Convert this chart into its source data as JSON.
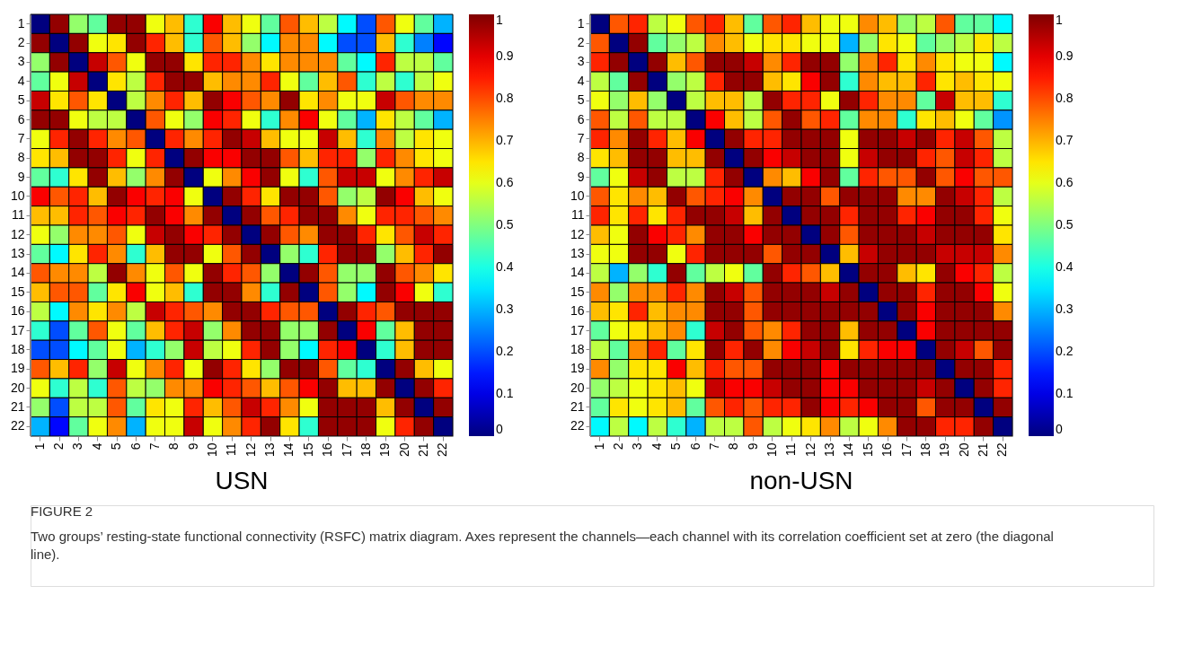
{
  "chart_data": [
    {
      "type": "heatmap",
      "title": "USN",
      "categories": [
        "1",
        "2",
        "3",
        "4",
        "5",
        "6",
        "7",
        "8",
        "9",
        "10",
        "11",
        "12",
        "13",
        "14",
        "15",
        "16",
        "17",
        "18",
        "19",
        "20",
        "21",
        "22"
      ],
      "y_categories": [
        "1",
        "2",
        "3",
        "4",
        "5",
        "6",
        "7",
        "8",
        "9",
        "10",
        "11",
        "12",
        "13",
        "14",
        "15",
        "16",
        "17",
        "18",
        "19",
        "20",
        "21",
        "22"
      ],
      "clim": [
        0,
        1
      ],
      "cticks": [
        0,
        0.1,
        0.2,
        0.3,
        0.4,
        0.5,
        0.6,
        0.7,
        0.8,
        0.9,
        1
      ],
      "cells": [
        [
          0,
          0.98,
          0.52,
          0.47,
          0.98,
          0.98,
          0.61,
          0.69,
          0.42,
          0.88,
          0.69,
          0.61,
          0.47,
          0.79,
          0.69,
          0.56,
          0.37,
          0.2,
          0.79,
          0.61,
          0.47,
          0.3
        ],
        [
          0.98,
          0,
          0.98,
          0.61,
          0.65,
          0.98,
          0.84,
          0.69,
          0.42,
          0.79,
          0.69,
          0.52,
          0.37,
          0.74,
          0.74,
          0.37,
          0.2,
          0.2,
          0.69,
          0.42,
          0.25,
          0.13
        ],
        [
          0.52,
          0.98,
          0,
          0.93,
          0.79,
          0.61,
          0.98,
          0.98,
          0.65,
          0.84,
          0.84,
          0.74,
          0.65,
          0.74,
          0.74,
          0.74,
          0.47,
          0.37,
          0.84,
          0.56,
          0.56,
          0.47
        ],
        [
          0.47,
          0.61,
          0.93,
          0,
          0.65,
          0.56,
          0.84,
          0.98,
          0.98,
          0.69,
          0.74,
          0.74,
          0.84,
          0.61,
          0.47,
          0.69,
          0.79,
          0.42,
          0.56,
          0.42,
          0.56,
          0.61
        ],
        [
          0.93,
          0.65,
          0.79,
          0.65,
          0,
          0.56,
          0.74,
          0.84,
          0.69,
          0.98,
          0.88,
          0.79,
          0.74,
          0.98,
          0.65,
          0.74,
          0.61,
          0.61,
          0.93,
          0.79,
          0.74,
          0.74
        ],
        [
          0.98,
          0.98,
          0.61,
          0.56,
          0.56,
          0,
          0.79,
          0.61,
          0.52,
          0.88,
          0.84,
          0.61,
          0.42,
          0.74,
          0.88,
          0.61,
          0.47,
          0.3,
          0.65,
          0.56,
          0.47,
          0.3
        ],
        [
          0.61,
          0.84,
          0.98,
          0.84,
          0.74,
          0.79,
          0,
          0.84,
          0.74,
          0.84,
          0.98,
          0.93,
          0.69,
          0.61,
          0.61,
          0.93,
          0.69,
          0.42,
          0.74,
          0.56,
          0.65,
          0.61
        ],
        [
          0.65,
          0.69,
          0.98,
          0.98,
          0.84,
          0.61,
          0.84,
          0,
          0.98,
          0.88,
          0.88,
          0.98,
          0.98,
          0.79,
          0.69,
          0.84,
          0.84,
          0.52,
          0.84,
          0.74,
          0.65,
          0.61
        ],
        [
          0.47,
          0.42,
          0.65,
          0.98,
          0.69,
          0.52,
          0.74,
          0.98,
          0,
          0.61,
          0.74,
          0.88,
          0.98,
          0.61,
          0.42,
          0.79,
          0.93,
          0.93,
          0.61,
          0.74,
          0.84,
          0.93
        ],
        [
          0.88,
          0.79,
          0.84,
          0.69,
          0.98,
          0.88,
          0.84,
          0.88,
          0.61,
          0,
          0.98,
          0.84,
          0.65,
          0.98,
          0.98,
          0.79,
          0.52,
          0.56,
          0.98,
          0.88,
          0.69,
          0.61
        ],
        [
          0.69,
          0.69,
          0.84,
          0.79,
          0.88,
          0.84,
          0.98,
          0.88,
          0.74,
          0.98,
          0,
          0.98,
          0.79,
          0.84,
          0.98,
          0.98,
          0.74,
          0.61,
          0.84,
          0.84,
          0.79,
          0.74
        ],
        [
          0.61,
          0.52,
          0.74,
          0.74,
          0.79,
          0.61,
          0.93,
          0.98,
          0.88,
          0.84,
          0.98,
          0,
          0.98,
          0.79,
          0.74,
          0.98,
          0.98,
          0.84,
          0.65,
          0.79,
          0.93,
          0.84
        ],
        [
          0.47,
          0.37,
          0.65,
          0.84,
          0.74,
          0.42,
          0.69,
          0.98,
          0.98,
          0.61,
          0.79,
          0.98,
          0,
          0.52,
          0.42,
          0.84,
          0.98,
          0.98,
          0.52,
          0.69,
          0.84,
          0.98
        ],
        [
          0.79,
          0.74,
          0.74,
          0.56,
          0.98,
          0.74,
          0.61,
          0.79,
          0.61,
          0.98,
          0.84,
          0.79,
          0.52,
          0,
          0.98,
          0.79,
          0.52,
          0.52,
          0.98,
          0.79,
          0.74,
          0.65
        ],
        [
          0.69,
          0.79,
          0.79,
          0.47,
          0.65,
          0.88,
          0.61,
          0.69,
          0.42,
          0.98,
          0.98,
          0.74,
          0.42,
          0.98,
          0,
          0.79,
          0.52,
          0.37,
          0.98,
          0.88,
          0.61,
          0.42
        ],
        [
          0.56,
          0.37,
          0.74,
          0.65,
          0.74,
          0.56,
          0.93,
          0.84,
          0.79,
          0.74,
          0.98,
          0.98,
          0.84,
          0.79,
          0.79,
          0,
          0.98,
          0.84,
          0.79,
          0.98,
          0.98,
          0.98
        ],
        [
          0.42,
          0.2,
          0.47,
          0.79,
          0.61,
          0.47,
          0.69,
          0.84,
          0.93,
          0.52,
          0.74,
          0.98,
          0.98,
          0.52,
          0.52,
          0.98,
          0,
          0.88,
          0.47,
          0.69,
          0.98,
          0.98
        ],
        [
          0.2,
          0.2,
          0.37,
          0.47,
          0.61,
          0.3,
          0.42,
          0.52,
          0.93,
          0.56,
          0.61,
          0.84,
          0.98,
          0.52,
          0.37,
          0.84,
          0.88,
          0,
          0.42,
          0.69,
          0.98,
          0.98
        ],
        [
          0.79,
          0.69,
          0.84,
          0.52,
          0.93,
          0.61,
          0.74,
          0.84,
          0.61,
          0.98,
          0.84,
          0.65,
          0.52,
          0.98,
          0.98,
          0.79,
          0.47,
          0.42,
          0,
          0.98,
          0.69,
          0.61
        ],
        [
          0.61,
          0.42,
          0.56,
          0.42,
          0.79,
          0.56,
          0.52,
          0.74,
          0.74,
          0.88,
          0.84,
          0.79,
          0.69,
          0.79,
          0.88,
          0.98,
          0.69,
          0.69,
          0.98,
          0,
          0.98,
          0.84
        ],
        [
          0.52,
          0.2,
          0.56,
          0.56,
          0.79,
          0.47,
          0.65,
          0.61,
          0.84,
          0.69,
          0.79,
          0.93,
          0.84,
          0.74,
          0.61,
          0.98,
          0.98,
          0.98,
          0.69,
          0.98,
          0,
          0.98
        ],
        [
          0.3,
          0.13,
          0.47,
          0.61,
          0.74,
          0.3,
          0.61,
          0.61,
          0.93,
          0.61,
          0.74,
          0.84,
          0.98,
          0.65,
          0.42,
          0.98,
          0.98,
          0.98,
          0.61,
          0.84,
          0.98,
          0
        ]
      ],
      "annotations": [
        "FIGURE 2",
        "Two groups’ resting-state functional connectivity (RSFC) matrix diagram. Axes represent the channels—each channel with its correlation coefficient set at zero (the diagonal line)."
      ]
    },
    {
      "type": "heatmap",
      "title": "non-USN",
      "categories": [
        "1",
        "2",
        "3",
        "4",
        "5",
        "6",
        "7",
        "8",
        "9",
        "10",
        "11",
        "12",
        "13",
        "14",
        "15",
        "16",
        "17",
        "18",
        "19",
        "20",
        "21",
        "22"
      ],
      "y_categories": [
        "1",
        "2",
        "3",
        "4",
        "5",
        "6",
        "7",
        "8",
        "9",
        "10",
        "11",
        "12",
        "13",
        "14",
        "15",
        "16",
        "17",
        "18",
        "19",
        "20",
        "21",
        "22"
      ],
      "clim": [
        0,
        1
      ],
      "cticks": [
        0,
        0.1,
        0.2,
        0.3,
        0.4,
        0.5,
        0.6,
        0.7,
        0.8,
        0.9,
        1
      ],
      "cells": [
        [
          0,
          0.79,
          0.84,
          0.56,
          0.61,
          0.79,
          0.84,
          0.69,
          0.47,
          0.79,
          0.84,
          0.69,
          0.61,
          0.61,
          0.74,
          0.69,
          0.52,
          0.56,
          0.79,
          0.47,
          0.47,
          0.37
        ],
        [
          0.79,
          0,
          0.98,
          0.47,
          0.52,
          0.56,
          0.74,
          0.69,
          0.61,
          0.65,
          0.65,
          0.61,
          0.61,
          0.3,
          0.52,
          0.65,
          0.61,
          0.47,
          0.52,
          0.56,
          0.65,
          0.56
        ],
        [
          0.84,
          0.98,
          0,
          0.98,
          0.69,
          0.79,
          0.98,
          0.98,
          0.93,
          0.74,
          0.84,
          0.98,
          0.98,
          0.52,
          0.74,
          0.84,
          0.65,
          0.74,
          0.65,
          0.61,
          0.61,
          0.37
        ],
        [
          0.56,
          0.47,
          0.98,
          0,
          0.52,
          0.56,
          0.84,
          0.98,
          0.98,
          0.69,
          0.65,
          0.88,
          0.98,
          0.42,
          0.74,
          0.69,
          0.69,
          0.84,
          0.65,
          0.69,
          0.65,
          0.61
        ],
        [
          0.61,
          0.52,
          0.69,
          0.52,
          0,
          0.56,
          0.69,
          0.69,
          0.56,
          0.98,
          0.84,
          0.84,
          0.61,
          0.98,
          0.84,
          0.74,
          0.74,
          0.47,
          0.93,
          0.69,
          0.69,
          0.42
        ],
        [
          0.79,
          0.56,
          0.79,
          0.56,
          0.56,
          0,
          0.88,
          0.69,
          0.56,
          0.79,
          0.98,
          0.79,
          0.84,
          0.47,
          0.74,
          0.74,
          0.42,
          0.65,
          0.69,
          0.61,
          0.47,
          0.27
        ],
        [
          0.84,
          0.74,
          0.98,
          0.84,
          0.69,
          0.88,
          0,
          0.98,
          0.84,
          0.84,
          0.98,
          0.98,
          0.98,
          0.61,
          0.98,
          0.98,
          0.93,
          0.98,
          0.84,
          0.93,
          0.79,
          0.56
        ],
        [
          0.65,
          0.69,
          0.98,
          0.98,
          0.69,
          0.69,
          0.98,
          0,
          0.98,
          0.88,
          0.93,
          0.98,
          0.98,
          0.61,
          0.93,
          0.98,
          0.98,
          0.84,
          0.79,
          0.93,
          0.84,
          0.56
        ],
        [
          0.47,
          0.61,
          0.93,
          0.98,
          0.56,
          0.56,
          0.84,
          0.98,
          0,
          0.74,
          0.69,
          0.88,
          0.98,
          0.47,
          0.84,
          0.79,
          0.79,
          0.98,
          0.79,
          0.88,
          0.79,
          0.79
        ],
        [
          0.79,
          0.65,
          0.74,
          0.69,
          0.98,
          0.79,
          0.84,
          0.88,
          0.74,
          0,
          0.98,
          0.98,
          0.79,
          0.98,
          0.98,
          0.98,
          0.74,
          0.74,
          0.98,
          0.93,
          0.84,
          0.56
        ],
        [
          0.84,
          0.65,
          0.84,
          0.65,
          0.84,
          0.98,
          0.98,
          0.93,
          0.69,
          0.98,
          0,
          0.98,
          0.98,
          0.84,
          0.98,
          0.98,
          0.84,
          0.88,
          0.98,
          0.98,
          0.84,
          0.61
        ],
        [
          0.69,
          0.61,
          0.98,
          0.88,
          0.84,
          0.74,
          0.98,
          0.98,
          0.88,
          0.98,
          0.98,
          0,
          0.98,
          0.79,
          0.98,
          0.98,
          0.98,
          0.93,
          0.98,
          0.98,
          0.98,
          0.65
        ],
        [
          0.61,
          0.61,
          0.98,
          0.98,
          0.61,
          0.84,
          0.98,
          0.98,
          0.98,
          0.79,
          0.98,
          0.98,
          0,
          0.69,
          0.93,
          0.98,
          0.98,
          0.98,
          0.93,
          0.93,
          0.93,
          0.74
        ],
        [
          0.56,
          0.3,
          0.52,
          0.42,
          0.98,
          0.47,
          0.56,
          0.61,
          0.47,
          0.98,
          0.84,
          0.79,
          0.69,
          0,
          0.98,
          0.98,
          0.69,
          0.65,
          0.98,
          0.88,
          0.84,
          0.56
        ],
        [
          0.74,
          0.52,
          0.74,
          0.74,
          0.84,
          0.74,
          0.98,
          0.93,
          0.79,
          0.98,
          0.98,
          0.98,
          0.93,
          0.98,
          0,
          0.98,
          0.98,
          0.84,
          0.98,
          0.98,
          0.88,
          0.61
        ],
        [
          0.69,
          0.65,
          0.84,
          0.69,
          0.74,
          0.74,
          0.98,
          0.98,
          0.79,
          0.98,
          0.98,
          0.98,
          0.98,
          0.98,
          0.98,
          0,
          0.98,
          0.88,
          0.98,
          0.98,
          0.98,
          0.74
        ],
        [
          0.47,
          0.61,
          0.65,
          0.69,
          0.74,
          0.42,
          0.93,
          0.98,
          0.79,
          0.74,
          0.84,
          0.98,
          0.98,
          0.69,
          0.98,
          0.98,
          0,
          0.88,
          0.98,
          0.98,
          0.98,
          0.98
        ],
        [
          0.56,
          0.47,
          0.74,
          0.84,
          0.47,
          0.65,
          0.98,
          0.84,
          0.98,
          0.74,
          0.88,
          0.93,
          0.98,
          0.65,
          0.84,
          0.88,
          0.88,
          0,
          0.98,
          0.93,
          0.79,
          0.98
        ],
        [
          0.74,
          0.52,
          0.65,
          0.65,
          0.88,
          0.69,
          0.84,
          0.79,
          0.79,
          0.98,
          0.98,
          0.98,
          0.88,
          0.98,
          0.98,
          0.98,
          0.98,
          0.98,
          0,
          0.98,
          0.98,
          0.84
        ],
        [
          0.52,
          0.56,
          0.61,
          0.65,
          0.69,
          0.61,
          0.93,
          0.88,
          0.88,
          0.93,
          0.98,
          0.98,
          0.88,
          0.88,
          0.98,
          0.98,
          0.98,
          0.93,
          0.98,
          0,
          0.98,
          0.84
        ],
        [
          0.47,
          0.65,
          0.61,
          0.65,
          0.69,
          0.47,
          0.79,
          0.84,
          0.79,
          0.84,
          0.84,
          0.98,
          0.88,
          0.84,
          0.88,
          0.98,
          0.98,
          0.79,
          0.98,
          0.98,
          0,
          0.98
        ],
        [
          0.37,
          0.56,
          0.37,
          0.56,
          0.42,
          0.3,
          0.56,
          0.56,
          0.79,
          0.56,
          0.61,
          0.65,
          0.74,
          0.56,
          0.61,
          0.74,
          0.98,
          0.98,
          0.84,
          0.84,
          0.98,
          0
        ]
      ]
    }
  ]
}
